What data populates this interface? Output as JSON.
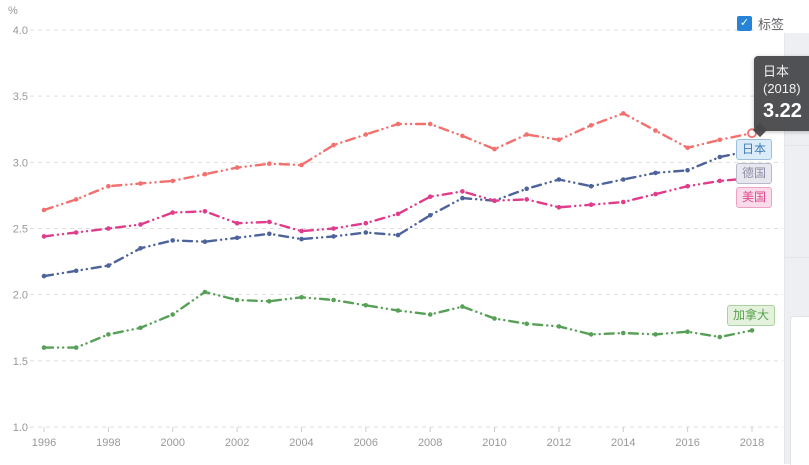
{
  "axes": {
    "unit": "%",
    "y_tick_labels": [
      "4.0",
      "3.5",
      "3.0",
      "2.5",
      "2.0",
      "1.5",
      "1.0"
    ],
    "x_tick_labels": [
      "1996",
      "1998",
      "2000",
      "2002",
      "2004",
      "2006",
      "2008",
      "2010",
      "2012",
      "2014",
      "2016",
      "2018"
    ],
    "text_color": "#999999",
    "grid_color": "#dddddd",
    "tick_color": "#cccccc"
  },
  "legend_toggle": {
    "label": "标签",
    "checked": true,
    "check_glyph": "✓",
    "checkbox_color": "#2584d8"
  },
  "tooltip": {
    "series": "日本",
    "year_display": "(2018)",
    "value": "3.22"
  },
  "chart_data": {
    "type": "line",
    "unit": "%",
    "x": [
      1996,
      1997,
      1998,
      1999,
      2000,
      2001,
      2002,
      2003,
      2004,
      2005,
      2006,
      2007,
      2008,
      2009,
      2010,
      2011,
      2012,
      2013,
      2014,
      2015,
      2016,
      2017,
      2018
    ],
    "ylim": [
      1.0,
      4.0
    ],
    "y_tick_step": 0.5,
    "grid": "horizontal dashed",
    "legend_position": "line-end-labels",
    "line_style": "dash-dot with point markers",
    "series": [
      {
        "name": "日本",
        "color": "#f2716e",
        "label_style": {
          "text": "#3f7cb4",
          "bg": "#dcebf8",
          "border": "#9dbfdc"
        },
        "values": [
          2.64,
          2.72,
          2.82,
          2.84,
          2.86,
          2.91,
          2.96,
          2.99,
          2.98,
          3.13,
          3.21,
          3.29,
          3.29,
          3.2,
          3.1,
          3.21,
          3.17,
          3.28,
          3.37,
          3.24,
          3.11,
          3.17,
          3.22
        ]
      },
      {
        "name": "德国",
        "color": "#4d639c",
        "label_style": {
          "text": "#8e8ea4",
          "bg": "#e7e7f0",
          "border": "#b9b9cc"
        },
        "values": [
          2.14,
          2.18,
          2.22,
          2.35,
          2.41,
          2.4,
          2.43,
          2.46,
          2.42,
          2.44,
          2.47,
          2.45,
          2.6,
          2.73,
          2.71,
          2.8,
          2.87,
          2.82,
          2.87,
          2.92,
          2.94,
          3.04,
          3.09
        ]
      },
      {
        "name": "美国",
        "color": "#e03c8c",
        "label_style": {
          "text": "#e0498b",
          "bg": "#fadbe9",
          "border": "#efa3c4"
        },
        "values": [
          2.44,
          2.47,
          2.5,
          2.53,
          2.62,
          2.63,
          2.54,
          2.55,
          2.48,
          2.5,
          2.54,
          2.61,
          2.74,
          2.78,
          2.71,
          2.72,
          2.66,
          2.68,
          2.7,
          2.76,
          2.82,
          2.86,
          2.88
        ]
      },
      {
        "name": "加拿大",
        "color": "#57a057",
        "label_style": {
          "text": "#58a04e",
          "bg": "#e3f1dd",
          "border": "#a9d29f"
        },
        "values": [
          1.6,
          1.6,
          1.7,
          1.75,
          1.85,
          2.02,
          1.96,
          1.95,
          1.98,
          1.96,
          1.92,
          1.88,
          1.85,
          1.91,
          1.82,
          1.78,
          1.76,
          1.7,
          1.71,
          1.7,
          1.72,
          1.68,
          1.73
        ]
      }
    ],
    "highlight": {
      "series": "日本",
      "year": 2018,
      "value": 3.22
    }
  }
}
